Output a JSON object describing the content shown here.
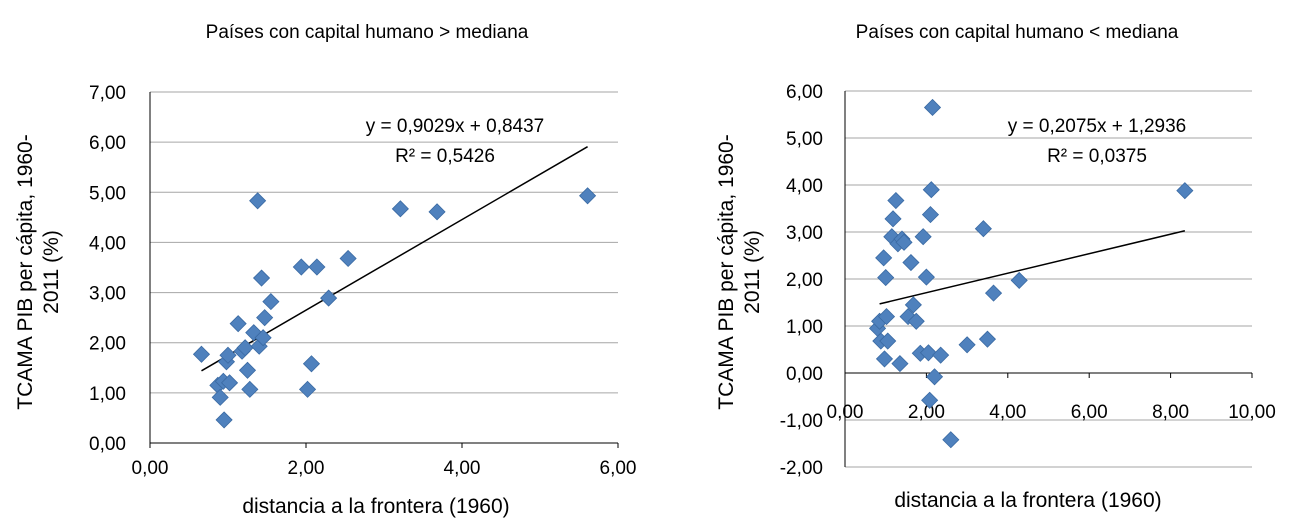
{
  "chart_data": [
    {
      "type": "scatter",
      "title": "Países con capital humano > mediana",
      "xlabel": "distancia a la frontera (1960)",
      "ylabel": "TCAMA PIB per cápita, 1960-2011 (%)",
      "ylabel_lines": [
        "TCAMA PIB per cápita, 1960-",
        "2011 (%)"
      ],
      "xlim": [
        0,
        6
      ],
      "ylim": [
        0,
        7
      ],
      "x_ticks": [
        "0,00",
        "2,00",
        "4,00",
        "6,00"
      ],
      "y_ticks": [
        "0,00",
        "1,00",
        "2,00",
        "3,00",
        "4,00",
        "5,00",
        "6,00",
        "7,00"
      ],
      "grid": "horizontal",
      "marker_color": "#4F81BD",
      "trendline": {
        "slope": 0.9029,
        "intercept": 0.8437,
        "x_range": [
          0.66,
          5.61
        ],
        "equation": "y = 0,9029x + 0,8437",
        "r2": "R² = 0,5426"
      },
      "points": [
        [
          0.66,
          1.77
        ],
        [
          0.87,
          1.15
        ],
        [
          0.9,
          0.91
        ],
        [
          0.94,
          1.23
        ],
        [
          0.95,
          0.46
        ],
        [
          0.98,
          1.62
        ],
        [
          1.0,
          1.75
        ],
        [
          1.02,
          1.2
        ],
        [
          1.13,
          2.38
        ],
        [
          1.18,
          1.83
        ],
        [
          1.22,
          1.9
        ],
        [
          1.25,
          1.45
        ],
        [
          1.28,
          1.07
        ],
        [
          1.33,
          2.2
        ],
        [
          1.38,
          4.83
        ],
        [
          1.4,
          1.93
        ],
        [
          1.43,
          3.29
        ],
        [
          1.45,
          2.1
        ],
        [
          1.47,
          2.5
        ],
        [
          1.55,
          2.82
        ],
        [
          1.94,
          3.51
        ],
        [
          2.02,
          1.07
        ],
        [
          2.07,
          1.58
        ],
        [
          2.14,
          3.51
        ],
        [
          2.29,
          2.89
        ],
        [
          2.54,
          3.68
        ],
        [
          3.21,
          4.67
        ],
        [
          3.68,
          4.61
        ],
        [
          5.61,
          4.93
        ]
      ]
    },
    {
      "type": "scatter",
      "title": "Países con capital humano < mediana",
      "xlabel": "distancia a la frontera (1960)",
      "ylabel": "TCAMA PIB per cápita, 1960-2011 (%)",
      "ylabel_lines": [
        "TCAMA PIB per cápita, 1960-",
        "2011 (%)"
      ],
      "xlim": [
        0,
        10
      ],
      "ylim": [
        -2,
        6
      ],
      "x_ticks": [
        "0,00",
        "2,00",
        "4,00",
        "6,00",
        "8,00",
        "10,00"
      ],
      "y_ticks": [
        "-2,00",
        "-1,00",
        "0,00",
        "1,00",
        "2,00",
        "3,00",
        "4,00",
        "5,00",
        "6,00"
      ],
      "grid": "horizontal",
      "marker_color": "#4F81BD",
      "trendline": {
        "slope": 0.2075,
        "intercept": 1.2936,
        "x_range": [
          0.85,
          8.35
        ],
        "equation": "y = 0,2075x + 1,2936",
        "r2": "R² = 0,0375"
      },
      "points": [
        [
          0.8,
          0.95
        ],
        [
          0.85,
          1.1
        ],
        [
          0.88,
          0.68
        ],
        [
          0.95,
          2.45
        ],
        [
          0.97,
          0.3
        ],
        [
          1.0,
          2.03
        ],
        [
          1.02,
          1.2
        ],
        [
          1.05,
          0.68
        ],
        [
          1.15,
          2.9
        ],
        [
          1.18,
          3.28
        ],
        [
          1.25,
          3.67
        ],
        [
          1.3,
          2.75
        ],
        [
          1.35,
          0.2
        ],
        [
          1.4,
          2.85
        ],
        [
          1.45,
          2.78
        ],
        [
          1.55,
          1.2
        ],
        [
          1.62,
          2.35
        ],
        [
          1.68,
          1.45
        ],
        [
          1.75,
          1.1
        ],
        [
          1.85,
          0.42
        ],
        [
          1.92,
          2.9
        ],
        [
          2.0,
          2.04
        ],
        [
          2.05,
          0.43
        ],
        [
          2.08,
          -0.58
        ],
        [
          2.1,
          3.37
        ],
        [
          2.12,
          3.9
        ],
        [
          2.15,
          5.65
        ],
        [
          2.2,
          -0.08
        ],
        [
          2.35,
          0.38
        ],
        [
          2.6,
          -1.42
        ],
        [
          3.0,
          0.6
        ],
        [
          3.4,
          3.07
        ],
        [
          3.5,
          0.72
        ],
        [
          3.65,
          1.7
        ],
        [
          4.28,
          1.97
        ],
        [
          8.35,
          3.88
        ]
      ]
    }
  ]
}
